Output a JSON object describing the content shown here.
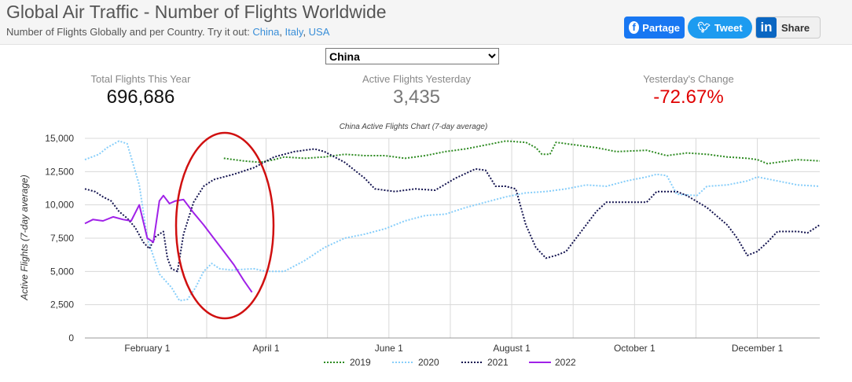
{
  "header": {
    "title": "Global Air Traffic - Number of Flights Worldwide",
    "subtitle_prefix": "Number of Flights Globally and per Country. Try it out: ",
    "links": [
      "China",
      "Italy",
      "USA"
    ],
    "share": {
      "facebook": "Partage",
      "twitter": "Tweet",
      "linkedin": "Share"
    }
  },
  "country_select": {
    "selected": "China"
  },
  "stats": {
    "total": {
      "label": "Total Flights This Year",
      "value": "696,686"
    },
    "active": {
      "label": "Active Flights Yesterday",
      "value": "3,435"
    },
    "change": {
      "label": "Yesterday's Change",
      "value": "-72.67%"
    }
  },
  "colors": {
    "s2019": "#2e8b22",
    "s2020": "#87cefa",
    "s2021": "#141450",
    "s2022": "#a021e8",
    "annotation": "#d01010",
    "negative": "#e00000"
  },
  "chart_data": {
    "type": "line",
    "title": "China Active Flights Chart (7-day average)",
    "ylabel": "Active Flights (7-day average)",
    "xlabel": "",
    "ylim": [
      0,
      15000
    ],
    "yticks": [
      0,
      2500,
      5000,
      7500,
      10000,
      12500,
      15000
    ],
    "ytick_labels": [
      "0",
      "2,500",
      "5,000",
      "7,500",
      "10,000",
      "12,500",
      "15,000"
    ],
    "xlim_day_of_year": [
      1,
      366
    ],
    "xticks": [
      {
        "day": 32,
        "label": "February 1"
      },
      {
        "day": 91,
        "label": "April 1"
      },
      {
        "day": 152,
        "label": "June 1"
      },
      {
        "day": 213,
        "label": "August 1"
      },
      {
        "day": 274,
        "label": "October 1"
      },
      {
        "day": 335,
        "label": "December 1"
      }
    ],
    "grid": true,
    "legend_position": "bottom",
    "series": [
      {
        "name": "2019",
        "style": "dotted",
        "points": [
          [
            70,
            13500
          ],
          [
            80,
            13300
          ],
          [
            88,
            13200
          ],
          [
            95,
            13400
          ],
          [
            100,
            13600
          ],
          [
            110,
            13500
          ],
          [
            120,
            13600
          ],
          [
            130,
            13800
          ],
          [
            140,
            13700
          ],
          [
            150,
            13700
          ],
          [
            160,
            13500
          ],
          [
            170,
            13700
          ],
          [
            180,
            14000
          ],
          [
            190,
            14200
          ],
          [
            200,
            14500
          ],
          [
            210,
            14800
          ],
          [
            220,
            14700
          ],
          [
            225,
            14300
          ],
          [
            228,
            13800
          ],
          [
            232,
            13800
          ],
          [
            235,
            14700
          ],
          [
            245,
            14500
          ],
          [
            255,
            14300
          ],
          [
            265,
            14000
          ],
          [
            280,
            14100
          ],
          [
            290,
            13700
          ],
          [
            300,
            13900
          ],
          [
            310,
            13800
          ],
          [
            320,
            13600
          ],
          [
            330,
            13500
          ],
          [
            335,
            13400
          ],
          [
            340,
            13100
          ],
          [
            345,
            13200
          ],
          [
            355,
            13400
          ],
          [
            366,
            13300
          ]
        ]
      },
      {
        "name": "2020",
        "style": "dotted",
        "points": [
          [
            1,
            13400
          ],
          [
            8,
            13800
          ],
          [
            12,
            14300
          ],
          [
            18,
            14800
          ],
          [
            22,
            14600
          ],
          [
            28,
            11500
          ],
          [
            32,
            7500
          ],
          [
            38,
            4800
          ],
          [
            44,
            3800
          ],
          [
            48,
            2800
          ],
          [
            52,
            2900
          ],
          [
            56,
            3800
          ],
          [
            60,
            5000
          ],
          [
            64,
            5600
          ],
          [
            68,
            5200
          ],
          [
            74,
            5100
          ],
          [
            85,
            5200
          ],
          [
            91,
            5000
          ],
          [
            100,
            5000
          ],
          [
            110,
            5800
          ],
          [
            120,
            6800
          ],
          [
            130,
            7500
          ],
          [
            140,
            7800
          ],
          [
            150,
            8200
          ],
          [
            160,
            8800
          ],
          [
            170,
            9200
          ],
          [
            180,
            9300
          ],
          [
            190,
            9800
          ],
          [
            200,
            10200
          ],
          [
            210,
            10600
          ],
          [
            220,
            10900
          ],
          [
            230,
            11000
          ],
          [
            240,
            11200
          ],
          [
            250,
            11500
          ],
          [
            260,
            11400
          ],
          [
            270,
            11800
          ],
          [
            280,
            12100
          ],
          [
            285,
            12300
          ],
          [
            290,
            12200
          ],
          [
            295,
            10800
          ],
          [
            305,
            10700
          ],
          [
            310,
            11400
          ],
          [
            320,
            11500
          ],
          [
            330,
            11800
          ],
          [
            335,
            12100
          ],
          [
            345,
            11800
          ],
          [
            355,
            11500
          ],
          [
            366,
            11400
          ]
        ]
      },
      {
        "name": "2021",
        "style": "dotted",
        "points": [
          [
            1,
            11200
          ],
          [
            6,
            11000
          ],
          [
            10,
            10600
          ],
          [
            14,
            10300
          ],
          [
            18,
            9500
          ],
          [
            22,
            9000
          ],
          [
            26,
            8300
          ],
          [
            30,
            7200
          ],
          [
            33,
            6700
          ],
          [
            36,
            7600
          ],
          [
            40,
            8000
          ],
          [
            42,
            6000
          ],
          [
            44,
            5200
          ],
          [
            47,
            5000
          ],
          [
            50,
            7800
          ],
          [
            55,
            10200
          ],
          [
            60,
            11400
          ],
          [
            65,
            11900
          ],
          [
            75,
            12300
          ],
          [
            85,
            12800
          ],
          [
            95,
            13600
          ],
          [
            105,
            14000
          ],
          [
            115,
            14200
          ],
          [
            120,
            14000
          ],
          [
            130,
            13200
          ],
          [
            140,
            12000
          ],
          [
            145,
            11200
          ],
          [
            155,
            11000
          ],
          [
            165,
            11200
          ],
          [
            175,
            11100
          ],
          [
            185,
            12000
          ],
          [
            195,
            12700
          ],
          [
            200,
            12600
          ],
          [
            205,
            11400
          ],
          [
            210,
            11400
          ],
          [
            215,
            11200
          ],
          [
            220,
            8500
          ],
          [
            225,
            6800
          ],
          [
            230,
            6000
          ],
          [
            235,
            6200
          ],
          [
            240,
            6500
          ],
          [
            245,
            7500
          ],
          [
            255,
            9500
          ],
          [
            260,
            10200
          ],
          [
            270,
            10200
          ],
          [
            280,
            10200
          ],
          [
            285,
            11000
          ],
          [
            295,
            11000
          ],
          [
            300,
            10700
          ],
          [
            310,
            9800
          ],
          [
            320,
            8500
          ],
          [
            325,
            7500
          ],
          [
            330,
            6200
          ],
          [
            335,
            6500
          ],
          [
            340,
            7200
          ],
          [
            345,
            8000
          ],
          [
            355,
            8000
          ],
          [
            360,
            7900
          ],
          [
            366,
            8500
          ]
        ]
      },
      {
        "name": "2022",
        "style": "solid",
        "points": [
          [
            1,
            8600
          ],
          [
            5,
            8900
          ],
          [
            10,
            8800
          ],
          [
            15,
            9100
          ],
          [
            20,
            8900
          ],
          [
            24,
            8800
          ],
          [
            28,
            10000
          ],
          [
            32,
            7500
          ],
          [
            35,
            7200
          ],
          [
            38,
            10300
          ],
          [
            40,
            10700
          ],
          [
            43,
            10100
          ],
          [
            46,
            10300
          ],
          [
            50,
            10400
          ],
          [
            55,
            9400
          ],
          [
            60,
            8500
          ],
          [
            65,
            7500
          ],
          [
            70,
            6500
          ],
          [
            75,
            5500
          ],
          [
            80,
            4300
          ],
          [
            84,
            3435
          ]
        ]
      }
    ]
  }
}
